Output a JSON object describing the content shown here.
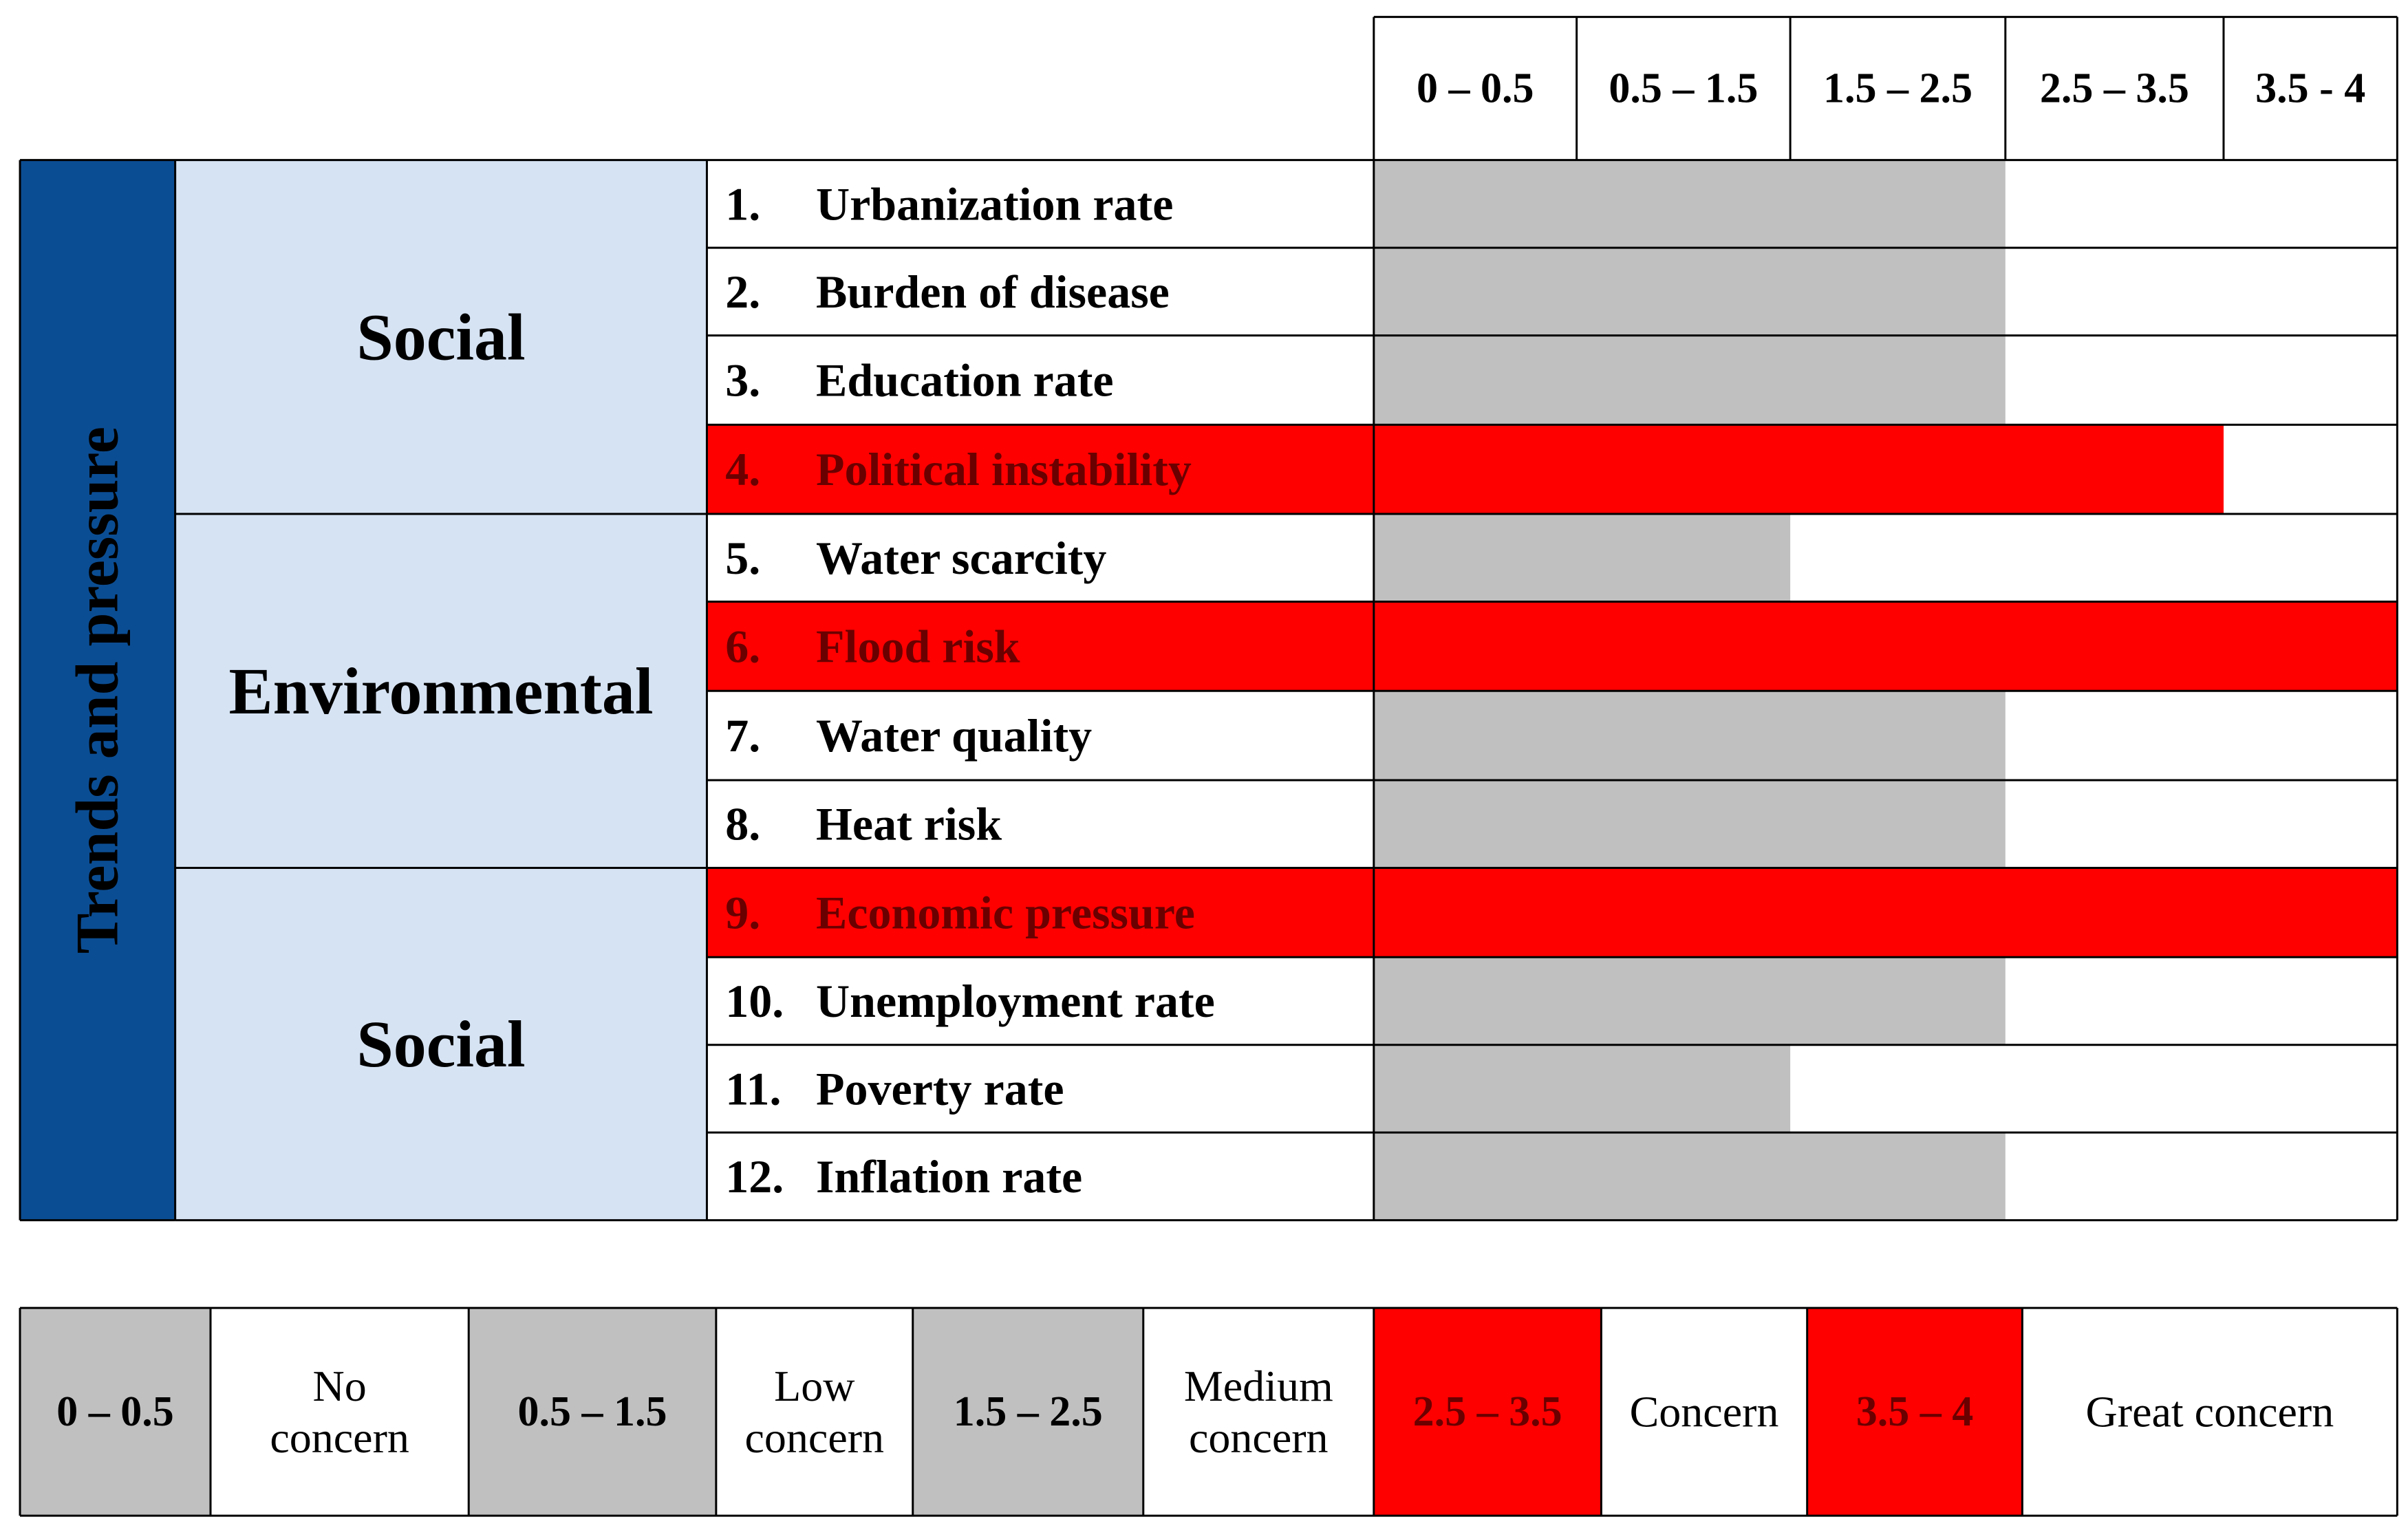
{
  "chart_data": {
    "type": "table",
    "title": "",
    "side_label": "Trends and pressure",
    "scale_columns": [
      "0 – 0.5",
      "0.5 – 1.5",
      "1.5 – 2.5",
      "2.5 – 3.5",
      "3.5 - 4"
    ],
    "groups": [
      {
        "name": "Social",
        "rows": [
          0,
          1,
          2,
          3
        ]
      },
      {
        "name": "Environmental",
        "rows": [
          4,
          5,
          6,
          7
        ]
      },
      {
        "name": "Social",
        "rows": [
          8,
          9,
          10,
          11
        ]
      }
    ],
    "indicators": [
      {
        "num": "1.",
        "label": "Urbanization rate",
        "filled_columns": 3,
        "level": "medium"
      },
      {
        "num": "2.",
        "label": "Burden of disease",
        "filled_columns": 3,
        "level": "medium"
      },
      {
        "num": "3.",
        "label": "Education rate",
        "filled_columns": 3,
        "level": "medium"
      },
      {
        "num": "4.",
        "label": "Political instability",
        "filled_columns": 4,
        "level": "high"
      },
      {
        "num": "5.",
        "label": "Water scarcity",
        "filled_columns": 2,
        "level": "medium"
      },
      {
        "num": "6.",
        "label": "Flood risk",
        "filled_columns": 5,
        "level": "high"
      },
      {
        "num": "7.",
        "label": "Water quality",
        "filled_columns": 3,
        "level": "medium"
      },
      {
        "num": "8.",
        "label": "Heat risk",
        "filled_columns": 3,
        "level": "medium"
      },
      {
        "num": "9.",
        "label": "Economic pressure",
        "filled_columns": 5,
        "level": "high"
      },
      {
        "num": "10.",
        "label": "Unemployment rate",
        "filled_columns": 3,
        "level": "medium"
      },
      {
        "num": "11.",
        "label": "Poverty rate",
        "filled_columns": 2,
        "level": "medium"
      },
      {
        "num": "12.",
        "label": "Inflation rate",
        "filled_columns": 3,
        "level": "medium"
      }
    ],
    "legend": [
      {
        "range": "0 – 0.5",
        "label": [
          "No",
          "concern"
        ],
        "color": "gray"
      },
      {
        "range": "0.5 – 1.5",
        "label": [
          "Low",
          "concern"
        ],
        "color": "gray"
      },
      {
        "range": "1.5 – 2.5",
        "label": [
          "Medium",
          "concern"
        ],
        "color": "gray"
      },
      {
        "range": "2.5 – 3.5",
        "label": [
          "Concern"
        ],
        "color": "red"
      },
      {
        "range": "3.5 – 4",
        "label": [
          "Great concern"
        ],
        "color": "red"
      }
    ],
    "colors": {
      "gray": "#c0c0c0",
      "red": "#ff0000",
      "side": "#0b4d93",
      "group": "#d6e3f3",
      "border": "#000000",
      "text": "#000000",
      "red_text": "#6b0000"
    }
  }
}
